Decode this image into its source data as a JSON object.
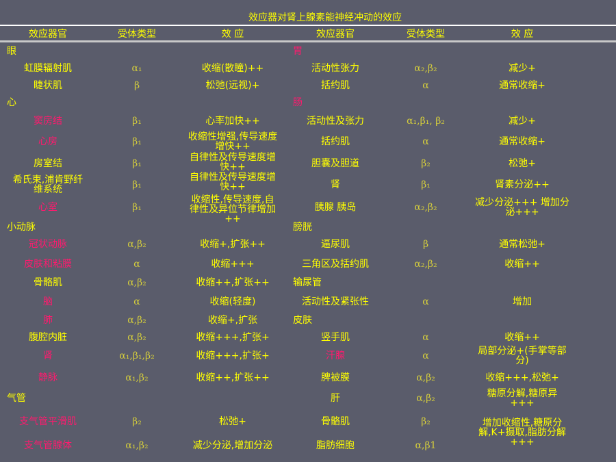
{
  "title": "效应器对肾上腺素能神经冲动的效应",
  "headers": [
    "效应器官",
    "受体类型",
    "效 应",
    "效应器官",
    "受体类型",
    "效 应"
  ],
  "colors": {
    "background": "#5a5c6b",
    "text": "#ffff00",
    "highlight": "#ff1a6e",
    "receptor": "#d6cf3c"
  },
  "left": [
    {
      "organ": "眼",
      "group": true
    },
    {
      "organ": "虹膜辐射肌",
      "receptor": "α₁",
      "effect": "收缩(散瞳)++"
    },
    {
      "organ": "睫状肌",
      "receptor": "β",
      "effect": "松弛(远视)+"
    },
    {
      "organ": "心",
      "group": true
    },
    {
      "organ": "窦房结",
      "red": true,
      "receptor": "β₁",
      "effect": "心率加快++"
    },
    {
      "organ": "心房",
      "red": true,
      "receptor": "β₁",
      "effect": "收缩性增强,传导速度\n增快++"
    },
    {
      "organ": "房室结",
      "receptor": "β₁",
      "effect": "自律性及传导速度增\n快++"
    },
    {
      "organ": "希氏束,浦肯野纤\n维系统",
      "receptor": "β₁",
      "effect": "自律性及传导速度增\n快++"
    },
    {
      "organ": "心室",
      "red": true,
      "receptor": "β₁",
      "effect": "收缩性,传导速度,自\n律性及异位节律增加\n++"
    },
    {
      "organ": "小动脉",
      "group": true
    },
    {
      "organ": "冠状动脉",
      "red": true,
      "receptor": "α,β₂",
      "effect": "收缩+,扩张++"
    },
    {
      "organ": "皮肤和粘膜",
      "red": true,
      "receptor": "α",
      "effect": "收缩+++"
    },
    {
      "organ": "骨骼肌",
      "receptor": "α,β₂",
      "effect": "收缩++,扩张++"
    },
    {
      "organ": "脑",
      "red": true,
      "receptor": "α",
      "effect": "收缩(轻度)"
    },
    {
      "organ": "肺",
      "red": true,
      "receptor": "α,β₂",
      "effect": "收缩+,扩张"
    },
    {
      "organ": "腹腔内脏",
      "receptor": "α,β₂",
      "effect": "收缩+++,扩张+"
    },
    {
      "organ": "肾",
      "red": true,
      "receptor": "α₁,β₁,β₂",
      "effect": "收缩+++,扩张+"
    },
    {
      "organ": "静脉",
      "red": true,
      "receptor": "α₁,β₂",
      "effect": "收缩++,扩张++"
    },
    {
      "organ": "气管",
      "group": true
    },
    {
      "organ": "支气管平滑肌",
      "red": true,
      "receptor": "β₂",
      "effect": "松弛+"
    },
    {
      "organ": "支气管腺体",
      "red": true,
      "receptor": "α₁,β₂",
      "effect": "减少分泌,增加分泌"
    }
  ],
  "right": [
    {
      "organ": "胃",
      "group": true,
      "red": true
    },
    {
      "organ": "活动性张力",
      "receptor": "α₂,β₂",
      "effect": "减少+"
    },
    {
      "organ": "括约肌",
      "receptor": "α",
      "effect": "通常收缩+"
    },
    {
      "organ": "肠",
      "group": true,
      "red": true
    },
    {
      "organ": "活动性及张力",
      "receptor": "α₁,β₁, β₂",
      "effect": "减少+"
    },
    {
      "organ": "括约肌",
      "receptor": "α",
      "effect": "通常收缩+"
    },
    {
      "organ": "胆囊及胆道",
      "receptor": "β₂",
      "effect": "松弛+"
    },
    {
      "organ": "肾",
      "receptor": "β₁",
      "effect": "肾素分泌++"
    },
    {
      "organ": "胰腺 胰岛",
      "receptor": "α₂,β₂",
      "effect": "减少分泌+++ 增加分\n泌+++"
    },
    {
      "organ": "膀胱",
      "group": true
    },
    {
      "organ": "逼尿肌",
      "receptor": "β",
      "effect": "通常松弛+"
    },
    {
      "organ": "三角区及括约肌",
      "receptor": "α₂,β₂",
      "effect": "收缩++"
    },
    {
      "organ": "输尿管",
      "group": true
    },
    {
      "organ": "活动性及紧张性",
      "receptor": "α",
      "effect": "增加"
    },
    {
      "organ": "皮肤",
      "group": true
    },
    {
      "organ": "竖手肌",
      "receptor": "α",
      "effect": "收缩++"
    },
    {
      "organ": "汗腺",
      "red": true,
      "receptor": "α",
      "effect": "局部分泌+(手掌等部\n分)"
    },
    {
      "organ": "脾被膜",
      "receptor": "α,β₂",
      "effect": "收缩+++,松弛+"
    },
    {
      "organ": "肝",
      "receptor": "α,β₂",
      "effect": "糖原分解,糖原异\n+++"
    },
    {
      "organ": "骨骼肌",
      "receptor": "β₂",
      "effect": "增加收缩性,糖原分\n解,K+摄取,脂肪分解\n+++"
    },
    {
      "organ": "脂肪细胞",
      "receptor": "α,β1",
      "effect": ""
    }
  ]
}
